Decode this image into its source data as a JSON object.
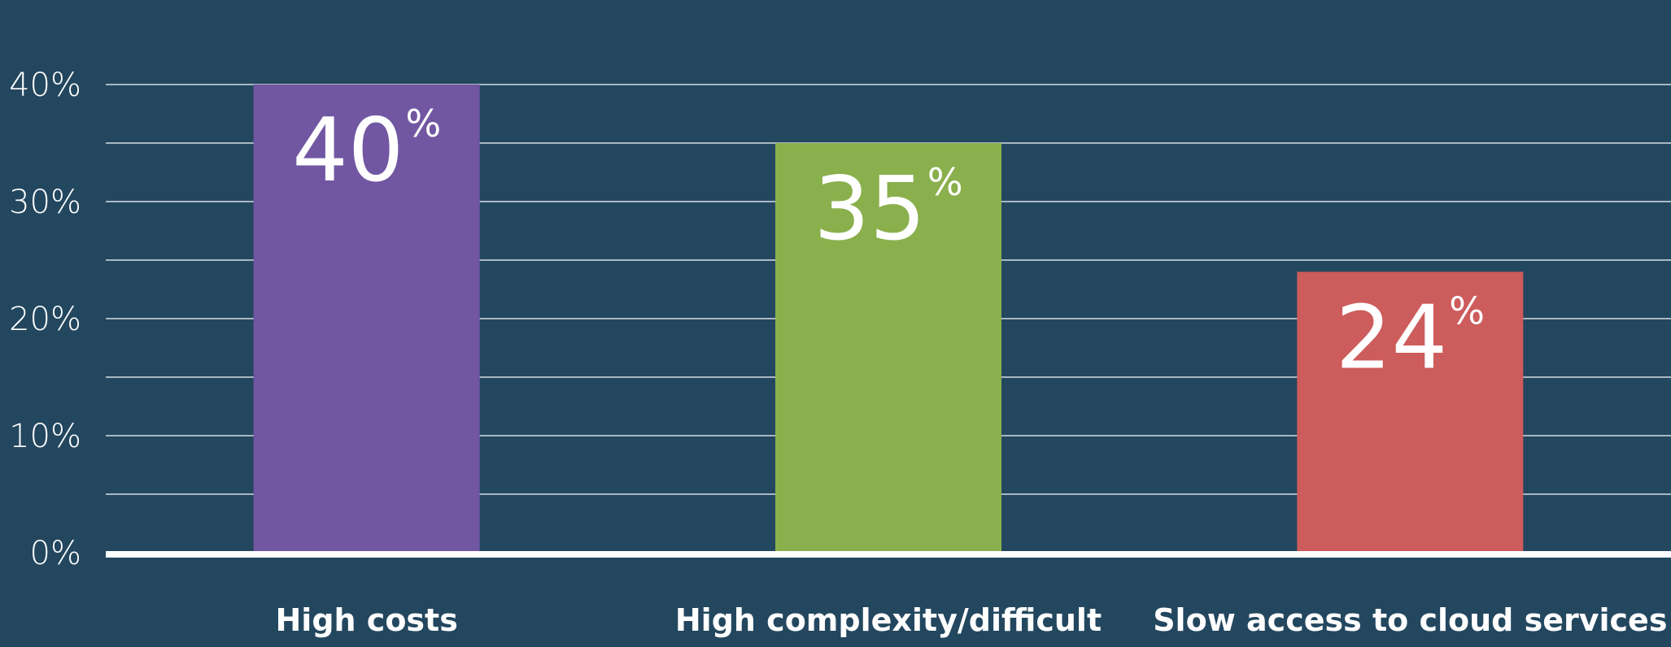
{
  "chart_data": {
    "type": "bar",
    "title": "",
    "xlabel": "",
    "ylabel": "",
    "categories": [
      "High costs",
      "High complexity/difficult",
      "Slow access to cloud services"
    ],
    "values": [
      40,
      35,
      24
    ],
    "value_labels": [
      "40",
      "35",
      "24"
    ],
    "value_suffix": "%",
    "ylim": [
      0,
      40
    ],
    "y_ticks": [
      {
        "value": 0,
        "label": "0%"
      },
      {
        "value": 10,
        "label": "10%"
      },
      {
        "value": 20,
        "label": "20%"
      },
      {
        "value": 30,
        "label": "30%"
      },
      {
        "value": 40,
        "label": "40%"
      }
    ],
    "minor_gridlines": [
      5,
      15,
      25,
      35
    ],
    "grid": true,
    "bar_colors": [
      "#7157a2",
      "#8ab04d",
      "#cd5c5c"
    ],
    "background_color": "#23475f",
    "gridline_color": "#d8dde3",
    "baseline_color": "#ffffff"
  }
}
